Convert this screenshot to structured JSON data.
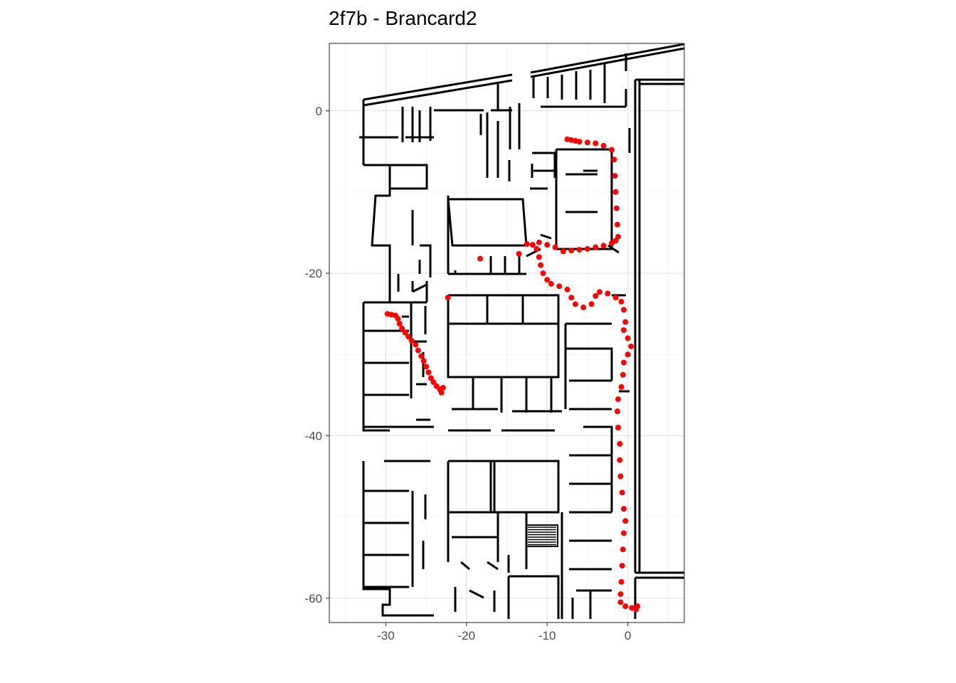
{
  "chart_data": {
    "type": "scatter",
    "title": "2f7b - Brancard2",
    "xlabel": "",
    "ylabel": "",
    "xlim": [
      -37,
      7
    ],
    "ylim": [
      -63,
      8.3
    ],
    "x_ticks": [
      -30,
      -20,
      -10,
      0
    ],
    "x_tick_labels": [
      "-30",
      "-20",
      "-10",
      "0"
    ],
    "y_ticks": [
      0,
      -20,
      -40,
      -60
    ],
    "y_tick_labels": [
      "0",
      "-20",
      "-40",
      "-60"
    ],
    "grid": true,
    "background": "floor-plan",
    "point_color": "#ff0000",
    "wall_color": "#000000",
    "series": [
      {
        "values": [
          [
            -7.5,
            -3.5
          ],
          [
            -7.0,
            -3.6
          ],
          [
            -6.5,
            -3.7
          ],
          [
            -6.0,
            -3.8
          ],
          [
            -5.0,
            -3.9
          ],
          [
            -4.0,
            -4.0
          ],
          [
            -3.0,
            -4.3
          ],
          [
            -2.0,
            -4.8
          ],
          [
            -1.7,
            -6.0
          ],
          [
            -1.6,
            -8.0
          ],
          [
            -1.5,
            -10.0
          ],
          [
            -1.4,
            -12.0
          ],
          [
            -1.3,
            -14.0
          ],
          [
            -1.2,
            -15.5
          ],
          [
            -1.5,
            -16.0
          ],
          [
            -2.0,
            -16.3
          ],
          [
            -3.0,
            -16.6
          ],
          [
            -4.0,
            -16.8
          ],
          [
            -5.0,
            -17.0
          ],
          [
            -6.0,
            -17.1
          ],
          [
            -7.0,
            -17.2
          ],
          [
            -8.0,
            -17.3
          ],
          [
            -9.0,
            -16.8
          ],
          [
            -10.0,
            -16.5
          ],
          [
            -11.0,
            -16.2
          ],
          [
            -11.3,
            -17.0
          ],
          [
            -11.0,
            -18.0
          ],
          [
            -10.8,
            -19.0
          ],
          [
            -10.5,
            -20.0
          ],
          [
            -10.0,
            -20.8
          ],
          [
            -9.5,
            -21.3
          ],
          [
            -8.5,
            -21.6
          ],
          [
            -7.5,
            -22.0
          ],
          [
            -7.0,
            -23.0
          ],
          [
            -6.5,
            -23.8
          ],
          [
            -5.5,
            -24.2
          ],
          [
            -4.5,
            -23.8
          ],
          [
            -4.0,
            -22.8
          ],
          [
            -3.5,
            -22.3
          ],
          [
            -2.5,
            -22.5
          ],
          [
            -1.5,
            -23.0
          ],
          [
            -0.8,
            -23.5
          ],
          [
            -0.5,
            -24.5
          ],
          [
            -0.3,
            -26.0
          ],
          [
            -0.5,
            -27.0
          ],
          [
            0.0,
            -28.0
          ],
          [
            0.4,
            -29.0
          ],
          [
            0.0,
            -30.0
          ],
          [
            -0.5,
            -31.0
          ],
          [
            -0.6,
            -32.5
          ],
          [
            -0.8,
            -34.0
          ],
          [
            -1.2,
            -35.5
          ],
          [
            -1.3,
            -37.0
          ],
          [
            -1.2,
            -39.0
          ],
          [
            -1.0,
            -41.0
          ],
          [
            -1.0,
            -43.0
          ],
          [
            -0.9,
            -45.0
          ],
          [
            -0.7,
            -47.0
          ],
          [
            -0.5,
            -49.0
          ],
          [
            -0.3,
            -50.5
          ],
          [
            -0.5,
            -52.0
          ],
          [
            -0.6,
            -54.0
          ],
          [
            -0.7,
            -56.0
          ],
          [
            -0.8,
            -58.0
          ],
          [
            -0.9,
            -59.5
          ],
          [
            -0.9,
            -60.5
          ],
          [
            -0.3,
            -61.0
          ],
          [
            0.5,
            -61.2
          ],
          [
            1.0,
            -61.4
          ],
          [
            1.2,
            -61.0
          ],
          [
            -29.8,
            -25.0
          ],
          [
            -29.3,
            -25.1
          ],
          [
            -28.8,
            -25.2
          ],
          [
            -28.5,
            -25.6
          ],
          [
            -28.3,
            -26.2
          ],
          [
            -28.0,
            -26.8
          ],
          [
            -27.6,
            -27.3
          ],
          [
            -27.2,
            -27.8
          ],
          [
            -26.8,
            -28.3
          ],
          [
            -26.3,
            -28.8
          ],
          [
            -26.0,
            -29.5
          ],
          [
            -25.6,
            -30.2
          ],
          [
            -25.3,
            -30.8
          ],
          [
            -25.0,
            -31.5
          ],
          [
            -24.7,
            -32.2
          ],
          [
            -24.4,
            -32.9
          ],
          [
            -24.1,
            -33.4
          ],
          [
            -23.7,
            -33.9
          ],
          [
            -23.3,
            -34.3
          ],
          [
            -23.1,
            -34.7
          ],
          [
            -22.9,
            -34.1
          ],
          [
            -22.3,
            -23.0
          ],
          [
            -18.3,
            -18.2
          ],
          [
            -13.5,
            -17.6
          ],
          [
            -12.5,
            -16.4
          ],
          [
            -11.8,
            -16.5
          ]
        ]
      }
    ]
  }
}
